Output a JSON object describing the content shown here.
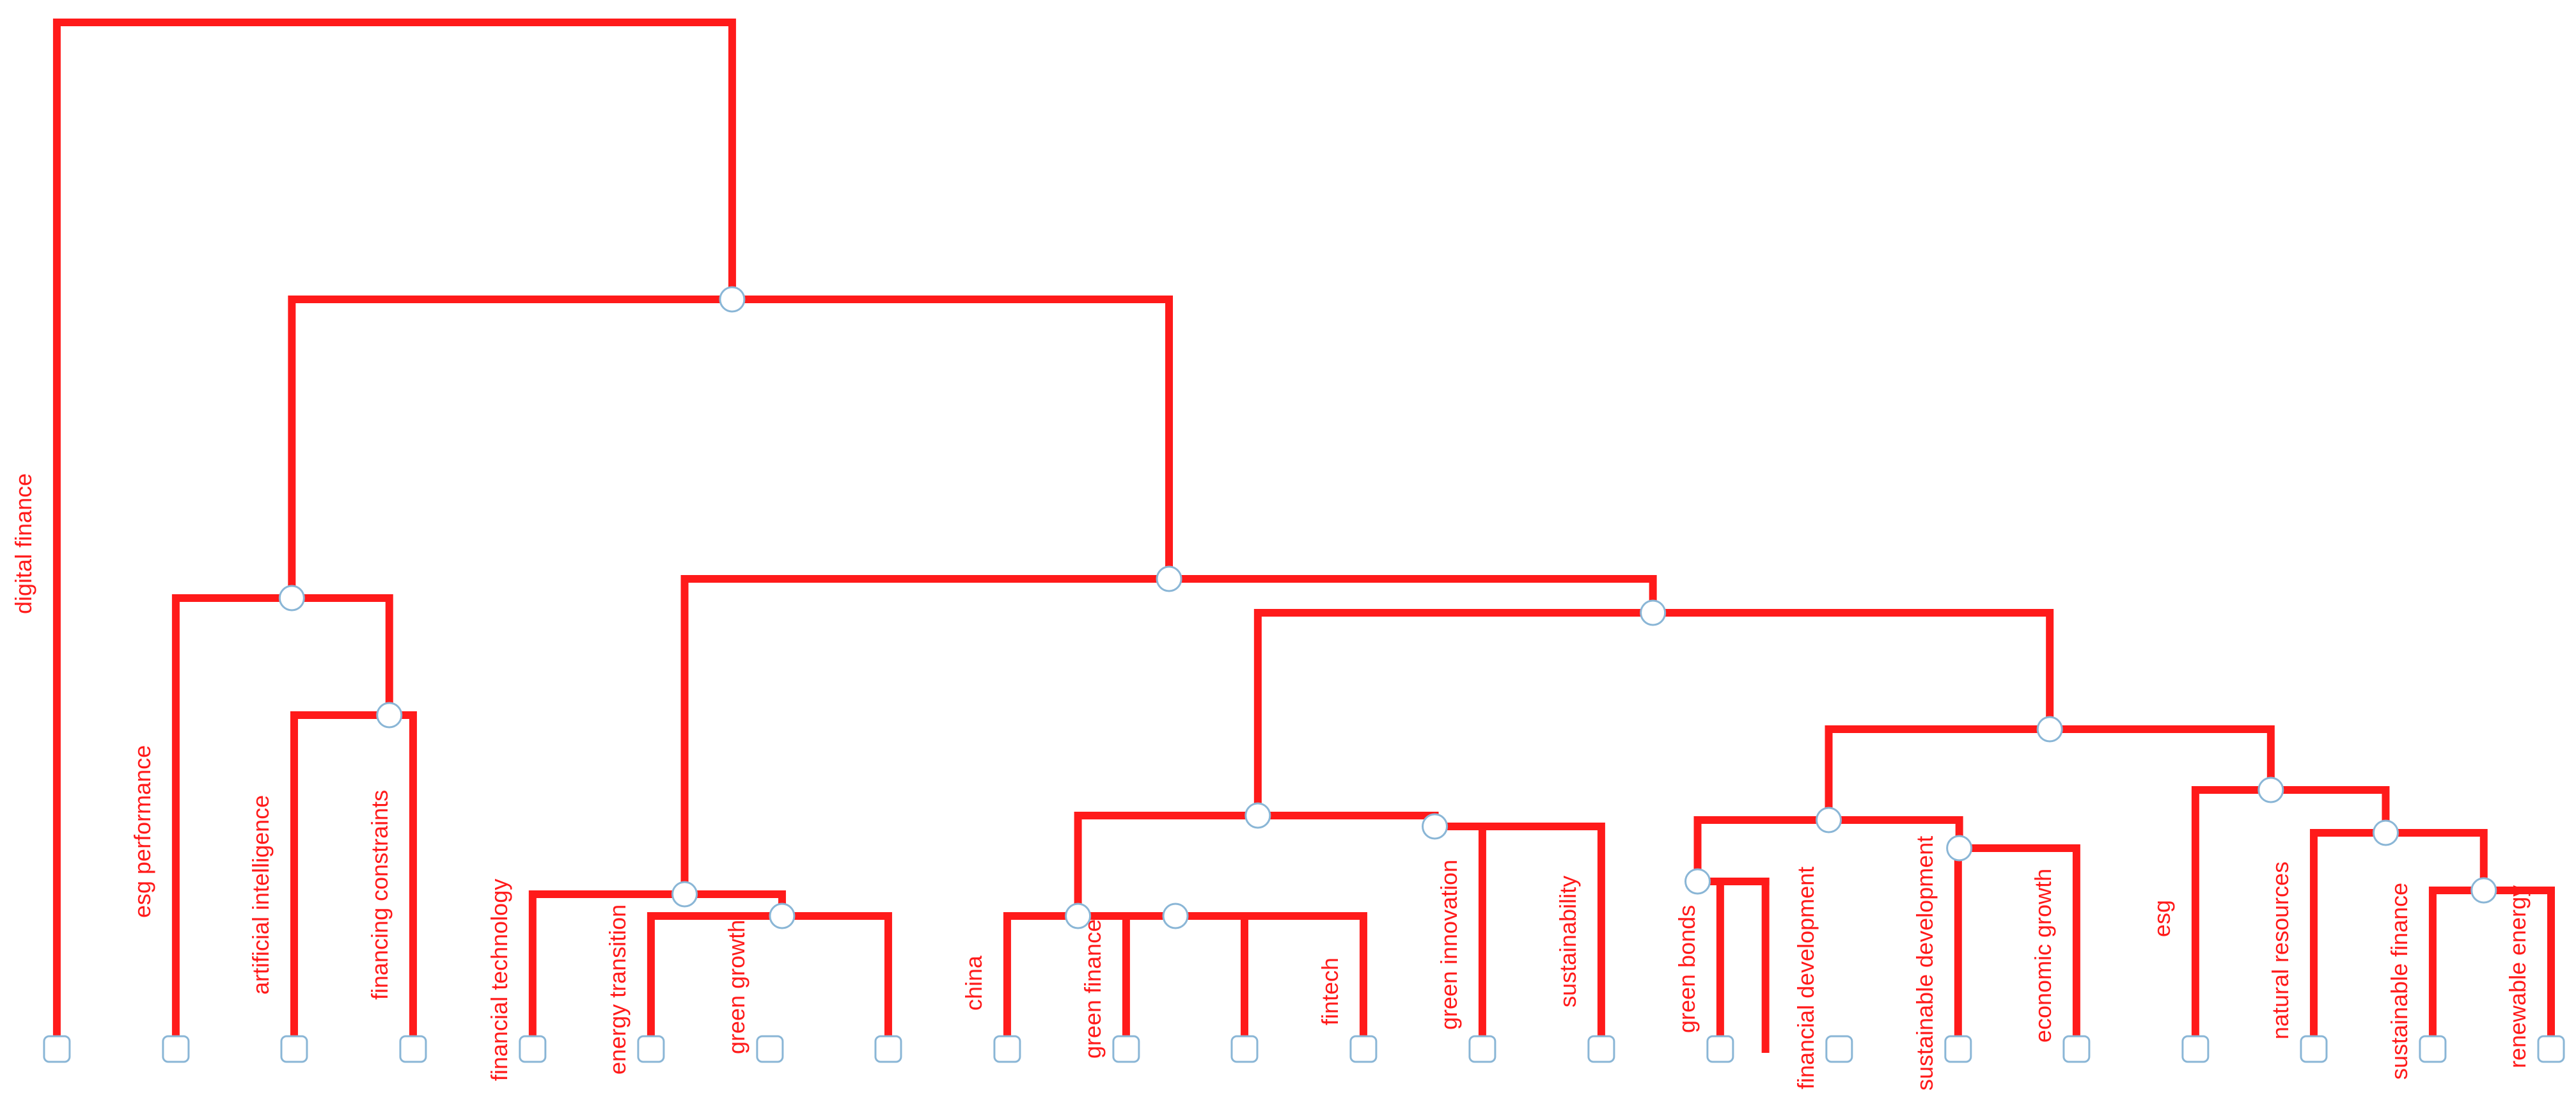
{
  "diagram": {
    "type": "dendrogram",
    "colors": {
      "link": "#ff1a1a",
      "label": "#ff1a1a",
      "node_stroke": "#8ab6d6",
      "node_fill": "#ffffff"
    },
    "leaves": [
      "digital finance",
      "esg performance",
      "artificial intelligence",
      "financing constraints",
      "financial technology",
      "energy transition",
      "green growth",
      "",
      "china",
      "green finance",
      "",
      "fintech",
      "green innovation",
      "sustainability",
      "green bonds",
      "financial development",
      "sustainable development",
      "economic growth",
      "esg",
      "natural resources",
      "sustainable finance",
      "renewable energy"
    ]
  }
}
